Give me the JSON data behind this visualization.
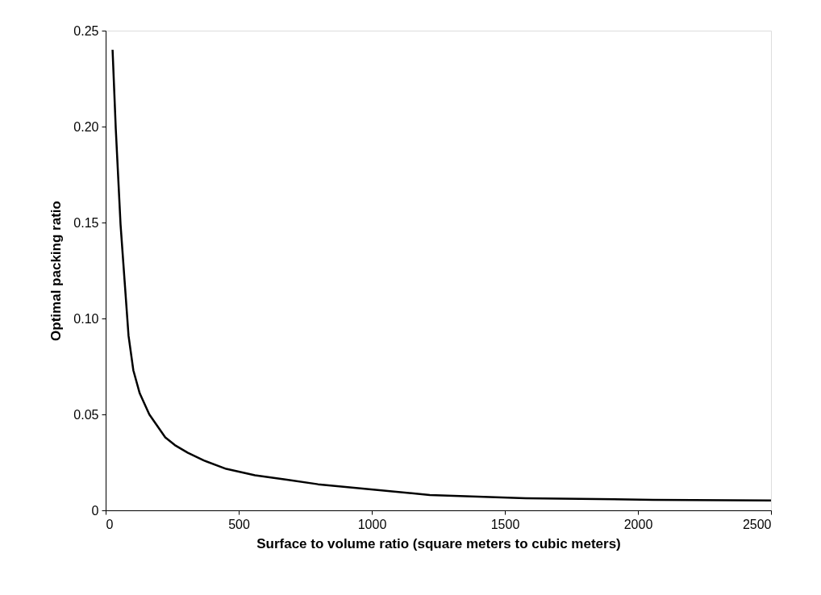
{
  "chart_data": {
    "type": "line",
    "xlabel": "Surface to volume ratio (square meters to cubic meters)",
    "ylabel": "Optimal packing ratio",
    "xlim": [
      0,
      2500
    ],
    "ylim": [
      0,
      0.25
    ],
    "xticks": [
      0,
      500,
      1000,
      1500,
      2000,
      2500
    ],
    "yticks": [
      0,
      {
        "value": 0.05,
        "label": "0.05"
      },
      {
        "value": 0.1,
        "label": "0.10"
      },
      {
        "value": 0.15,
        "label": "0.15"
      },
      {
        "value": 0.2,
        "label": "0.20"
      },
      {
        "value": 0.25,
        "label": "0.25"
      }
    ],
    "grid": false,
    "marker": "none",
    "line_style": "solid",
    "series": [
      {
        "color": "#000000",
        "x": [
          26,
          38,
          56,
          71,
          86,
          104,
          128,
          164,
          224,
          260,
          309,
          369,
          453,
          561,
          681,
          798,
          1218,
          1578,
          2058,
          2500
        ],
        "values": [
          0.24,
          0.199,
          0.149,
          0.12,
          0.091,
          0.073,
          0.061,
          0.05,
          0.038,
          0.034,
          0.03,
          0.026,
          0.0216,
          0.0183,
          0.016,
          0.0136,
          0.008,
          0.0063,
          0.0055,
          0.0051
        ]
      }
    ]
  }
}
